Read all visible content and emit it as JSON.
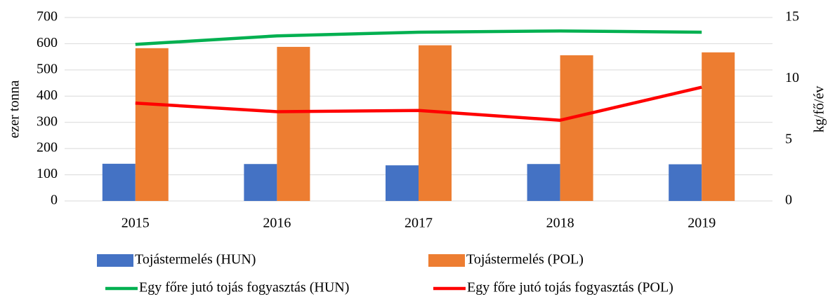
{
  "chart_data": {
    "type": "bar",
    "categories": [
      "2015",
      "2016",
      "2017",
      "2018",
      "2019"
    ],
    "ylabel": "ezer tonna",
    "y2label": "kg/fő/év",
    "ylim": [
      0,
      700
    ],
    "yticks": [
      0,
      100,
      200,
      300,
      400,
      500,
      600,
      700
    ],
    "y2lim": [
      0,
      15
    ],
    "y2ticks": [
      0,
      5,
      10,
      15
    ],
    "grid": true,
    "legend": "bottom",
    "series": [
      {
        "name": "Tojástermelés (HUN)",
        "type": "bar",
        "color": "#4472c4",
        "values": [
          142,
          141,
          136,
          141,
          140
        ]
      },
      {
        "name": "Tojástermelés (POL)",
        "type": "bar",
        "color": "#ed7d31",
        "values": [
          583,
          588,
          594,
          556,
          567
        ]
      },
      {
        "name": "Egy főre jutó tojás fogyasztás (HUN)",
        "type": "line",
        "axis": "y2",
        "color": "#00b050",
        "values": [
          12.8,
          13.5,
          13.8,
          13.9,
          13.8
        ]
      },
      {
        "name": "Egy főre jutó tojás fogyasztás (POL)",
        "type": "line",
        "axis": "y2",
        "color": "#ff0000",
        "values": [
          8.0,
          7.3,
          7.4,
          6.6,
          9.3
        ]
      }
    ]
  }
}
